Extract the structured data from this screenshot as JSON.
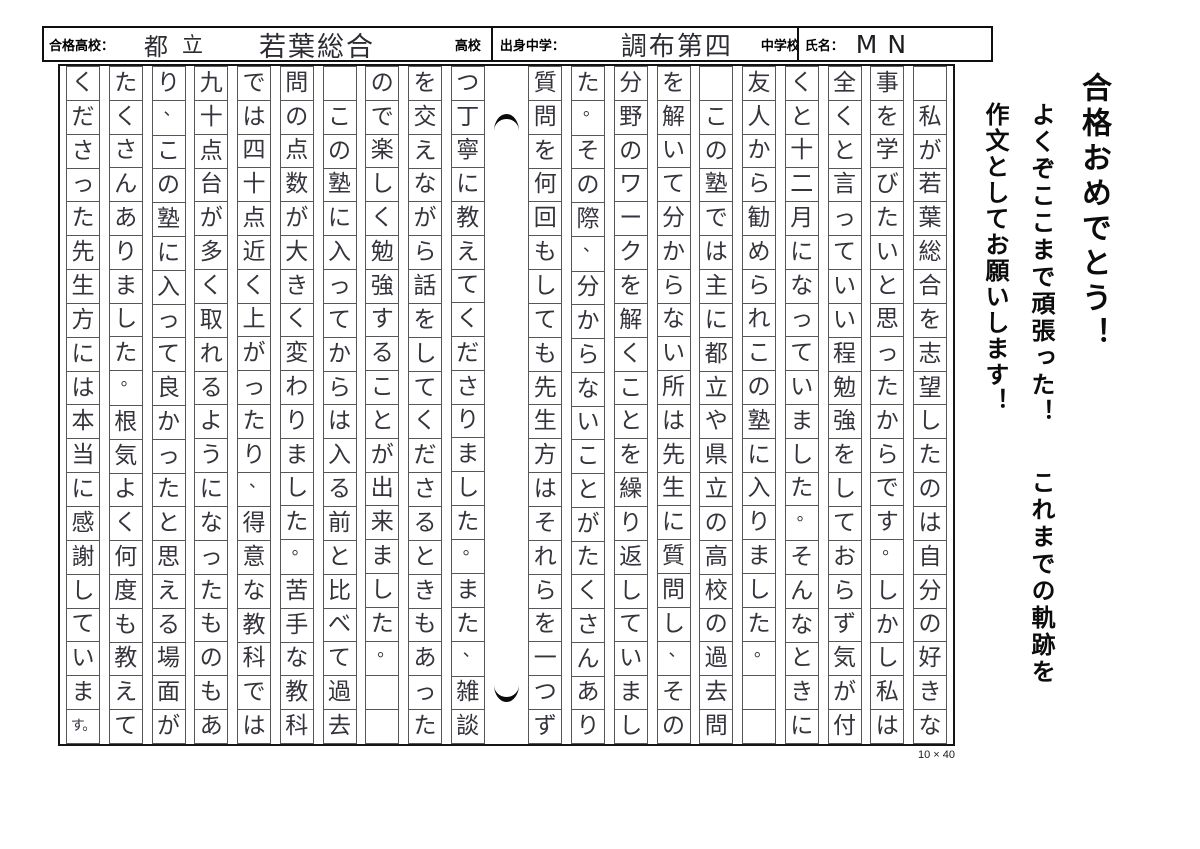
{
  "header": {
    "passed_school": {
      "label": "合格高校：",
      "value_part1": "都",
      "value_part2": "立",
      "value_part3": "若葉総合",
      "suffix": "高校"
    },
    "origin_school": {
      "label": "出身中学：",
      "value": "調布第四",
      "suffix": "中学校"
    },
    "name": {
      "label": "氏名：",
      "value": "MN"
    }
  },
  "margin_notes": {
    "congrats": "合格おめでとう！",
    "praise": "よくぞここまで頑張った！",
    "request_lead": "これまでの軌跡を",
    "request": "作文としてお願いします！"
  },
  "manuscript": {
    "grid_label": "10 × 40",
    "rows_per_column": 20,
    "fold_after_column": 10,
    "columns_rtl": [
      [
        "",
        "私",
        "が",
        "若",
        "葉",
        "総",
        "合",
        "を",
        "志",
        "望",
        "し",
        "た",
        "の",
        "は",
        "自",
        "分",
        "の",
        "好",
        "き",
        "な"
      ],
      [
        "事",
        "を",
        "学",
        "び",
        "た",
        "い",
        "と",
        "思",
        "っ",
        "た",
        "か",
        "ら",
        "で",
        "す",
        "。",
        "し",
        "か",
        "し",
        "私",
        "は"
      ],
      [
        "全",
        "く",
        "と",
        "言",
        "っ",
        "て",
        "い",
        "い",
        "程",
        "勉",
        "強",
        "を",
        "し",
        "て",
        "お",
        "ら",
        "ず",
        "気",
        "が",
        "付"
      ],
      [
        "く",
        "と",
        "十",
        "二",
        "月",
        "に",
        "な",
        "っ",
        "て",
        "い",
        "ま",
        "し",
        "た",
        "。",
        "そ",
        "ん",
        "な",
        "と",
        "き",
        "に"
      ],
      [
        "友",
        "人",
        "か",
        "ら",
        "勧",
        "め",
        "ら",
        "れ",
        "こ",
        "の",
        "塾",
        "に",
        "入",
        "り",
        "ま",
        "し",
        "た",
        "。",
        "",
        ""
      ],
      [
        "",
        "こ",
        "の",
        "塾",
        "で",
        "は",
        "主",
        "に",
        "都",
        "立",
        "や",
        "県",
        "立",
        "の",
        "高",
        "校",
        "の",
        "過",
        "去",
        "問"
      ],
      [
        "を",
        "解",
        "い",
        "て",
        "分",
        "か",
        "ら",
        "な",
        "い",
        "所",
        "は",
        "先",
        "生",
        "に",
        "質",
        "問",
        "し",
        "、",
        "そ",
        "の"
      ],
      [
        "分",
        "野",
        "の",
        "ワ",
        "ー",
        "ク",
        "を",
        "解",
        "く",
        "こ",
        "と",
        "を",
        "繰",
        "り",
        "返",
        "し",
        "て",
        "い",
        "ま",
        "し"
      ],
      [
        "た",
        "。",
        "そ",
        "の",
        "際",
        "、",
        "分",
        "か",
        "ら",
        "な",
        "い",
        "こ",
        "と",
        "が",
        "た",
        "く",
        "さ",
        "ん",
        "あ",
        "り"
      ],
      [
        "質",
        "問",
        "を",
        "何",
        "回",
        "も",
        "し",
        "て",
        "も",
        "先",
        "生",
        "方",
        "は",
        "そ",
        "れ",
        "ら",
        "を",
        "一",
        "つ",
        "ず"
      ],
      [
        "つ",
        "丁",
        "寧",
        "に",
        "教",
        "え",
        "て",
        "く",
        "だ",
        "さ",
        "り",
        "ま",
        "し",
        "た",
        "。",
        "ま",
        "た",
        "、",
        "雑",
        "談"
      ],
      [
        "を",
        "交",
        "え",
        "な",
        "が",
        "ら",
        "話",
        "を",
        "し",
        "て",
        "く",
        "だ",
        "さ",
        "る",
        "と",
        "き",
        "も",
        "あ",
        "っ",
        "た"
      ],
      [
        "の",
        "で",
        "楽",
        "し",
        "く",
        "勉",
        "強",
        "す",
        "る",
        "こ",
        "と",
        "が",
        "出",
        "来",
        "ま",
        "し",
        "た",
        "。",
        "",
        ""
      ],
      [
        "",
        "こ",
        "の",
        "塾",
        "に",
        "入",
        "っ",
        "て",
        "か",
        "ら",
        "は",
        "入",
        "る",
        "前",
        "と",
        "比",
        "べ",
        "て",
        "過",
        "去"
      ],
      [
        "問",
        "の",
        "点",
        "数",
        "が",
        "大",
        "き",
        "く",
        "変",
        "わ",
        "り",
        "ま",
        "し",
        "た",
        "。",
        "苦",
        "手",
        "な",
        "教",
        "科"
      ],
      [
        "で",
        "は",
        "四",
        "十",
        "点",
        "近",
        "く",
        "上",
        "が",
        "っ",
        "た",
        "り",
        "、",
        "得",
        "意",
        "な",
        "教",
        "科",
        "で",
        "は"
      ],
      [
        "九",
        "十",
        "点",
        "台",
        "が",
        "多",
        "く",
        "取",
        "れ",
        "る",
        "よ",
        "う",
        "に",
        "な",
        "っ",
        "た",
        "も",
        "の",
        "も",
        "あ"
      ],
      [
        "り",
        "、",
        "こ",
        "の",
        "塾",
        "に",
        "入",
        "っ",
        "て",
        "良",
        "か",
        "っ",
        "た",
        "と",
        "思",
        "え",
        "る",
        "場",
        "面",
        "が"
      ],
      [
        "た",
        "く",
        "さ",
        "ん",
        "あ",
        "り",
        "ま",
        "し",
        "た",
        "。",
        "根",
        "気",
        "よ",
        "く",
        "何",
        "度",
        "も",
        "教",
        "え",
        "て"
      ],
      [
        "く",
        "だ",
        "さ",
        "っ",
        "た",
        "先",
        "生",
        "方",
        "に",
        "は",
        "本",
        "当",
        "に",
        "感",
        "謝",
        "し",
        "て",
        "い",
        "ま",
        "す。"
      ]
    ]
  }
}
